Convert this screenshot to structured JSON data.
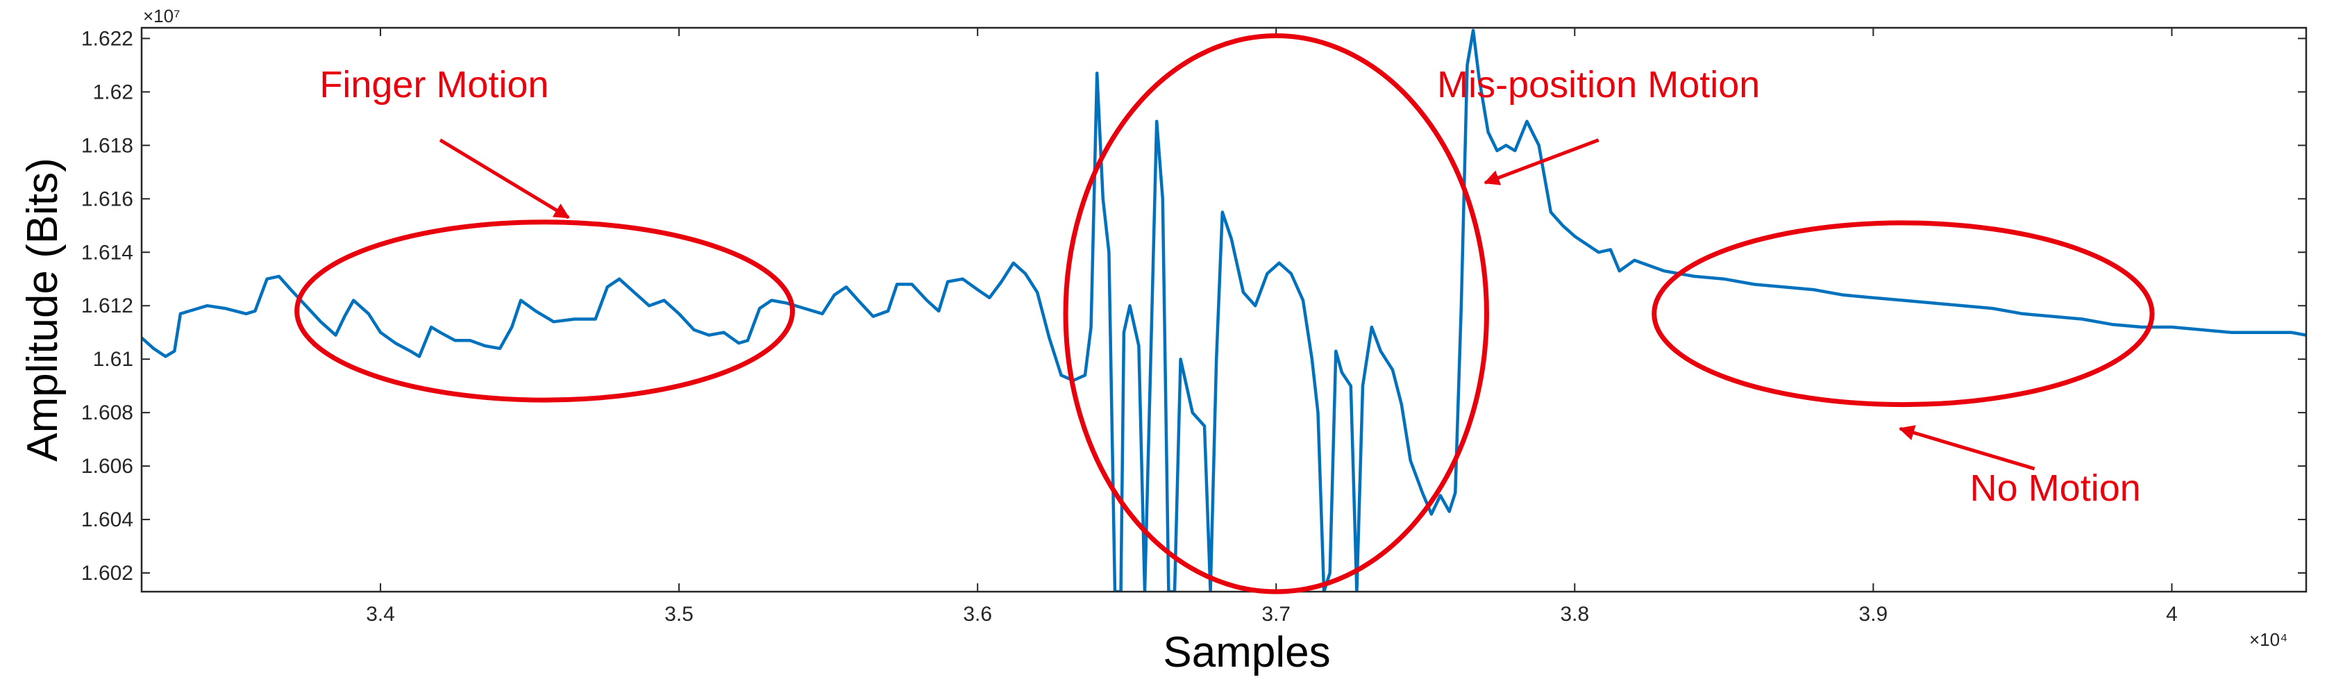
{
  "chart_data": {
    "type": "line",
    "xlabel": "Samples",
    "ylabel": "Amplitude (Bits)",
    "x_exponent": "×10⁴",
    "y_exponent": "×10⁷",
    "xlim": [
      3.32,
      4.045
    ],
    "ylim": [
      1.6013,
      1.6224
    ],
    "x_ticks": [
      3.4,
      3.5,
      3.6,
      3.7,
      3.8,
      3.9,
      4.0
    ],
    "x_tick_labels": [
      "3.4",
      "3.5",
      "3.6",
      "3.7",
      "3.8",
      "3.9",
      "4"
    ],
    "y_ticks": [
      1.602,
      1.604,
      1.606,
      1.608,
      1.61,
      1.612,
      1.614,
      1.616,
      1.618,
      1.62,
      1.622
    ],
    "y_tick_labels": [
      "1.602",
      "1.604",
      "1.606",
      "1.608",
      "1.61",
      "1.612",
      "1.614",
      "1.616",
      "1.618",
      "1.62",
      "1.622"
    ],
    "grid": false,
    "series": [
      {
        "color": "#0072BD",
        "points": [
          [
            3.32,
            1.6108
          ],
          [
            3.324,
            1.6104
          ],
          [
            3.328,
            1.6101
          ],
          [
            3.331,
            1.6103
          ],
          [
            3.333,
            1.6117
          ],
          [
            3.336,
            1.6118
          ],
          [
            3.342,
            1.612
          ],
          [
            3.348,
            1.6119
          ],
          [
            3.355,
            1.6117
          ],
          [
            3.358,
            1.6118
          ],
          [
            3.362,
            1.613
          ],
          [
            3.366,
            1.6131
          ],
          [
            3.37,
            1.6126
          ],
          [
            3.375,
            1.612
          ],
          [
            3.38,
            1.6114
          ],
          [
            3.385,
            1.6109
          ],
          [
            3.388,
            1.6116
          ],
          [
            3.391,
            1.6122
          ],
          [
            3.396,
            1.6117
          ],
          [
            3.4,
            1.611
          ],
          [
            3.405,
            1.6106
          ],
          [
            3.41,
            1.6103
          ],
          [
            3.413,
            1.6101
          ],
          [
            3.417,
            1.6112
          ],
          [
            3.42,
            1.611
          ],
          [
            3.425,
            1.6107
          ],
          [
            3.43,
            1.6107
          ],
          [
            3.435,
            1.6105
          ],
          [
            3.44,
            1.6104
          ],
          [
            3.444,
            1.6112
          ],
          [
            3.447,
            1.6122
          ],
          [
            3.452,
            1.6118
          ],
          [
            3.458,
            1.6114
          ],
          [
            3.465,
            1.6115
          ],
          [
            3.472,
            1.6115
          ],
          [
            3.476,
            1.6127
          ],
          [
            3.48,
            1.613
          ],
          [
            3.485,
            1.6125
          ],
          [
            3.49,
            1.612
          ],
          [
            3.495,
            1.6122
          ],
          [
            3.5,
            1.6117
          ],
          [
            3.505,
            1.6111
          ],
          [
            3.51,
            1.6109
          ],
          [
            3.515,
            1.611
          ],
          [
            3.52,
            1.6106
          ],
          [
            3.523,
            1.6107
          ],
          [
            3.527,
            1.6119
          ],
          [
            3.531,
            1.6122
          ],
          [
            3.536,
            1.6121
          ],
          [
            3.542,
            1.6119
          ],
          [
            3.548,
            1.6117
          ],
          [
            3.552,
            1.6124
          ],
          [
            3.556,
            1.6127
          ],
          [
            3.56,
            1.6122
          ],
          [
            3.565,
            1.6116
          ],
          [
            3.57,
            1.6118
          ],
          [
            3.573,
            1.6128
          ],
          [
            3.578,
            1.6128
          ],
          [
            3.583,
            1.6122
          ],
          [
            3.587,
            1.6118
          ],
          [
            3.59,
            1.6129
          ],
          [
            3.595,
            1.613
          ],
          [
            3.6,
            1.6126
          ],
          [
            3.604,
            1.6123
          ],
          [
            3.608,
            1.6129
          ],
          [
            3.612,
            1.6136
          ],
          [
            3.616,
            1.6132
          ],
          [
            3.62,
            1.6125
          ],
          [
            3.624,
            1.6108
          ],
          [
            3.628,
            1.6094
          ],
          [
            3.632,
            1.6092
          ],
          [
            3.636,
            1.6094
          ],
          [
            3.638,
            1.6112
          ],
          [
            3.64,
            1.6207
          ],
          [
            3.642,
            1.616
          ],
          [
            3.644,
            1.614
          ],
          [
            3.646,
            1.6013
          ],
          [
            3.648,
            1.6013
          ],
          [
            3.649,
            1.611
          ],
          [
            3.651,
            1.612
          ],
          [
            3.654,
            1.6105
          ],
          [
            3.656,
            1.6013
          ],
          [
            3.658,
            1.61
          ],
          [
            3.66,
            1.6189
          ],
          [
            3.662,
            1.616
          ],
          [
            3.664,
            1.6013
          ],
          [
            3.666,
            1.6013
          ],
          [
            3.668,
            1.61
          ],
          [
            3.672,
            1.608
          ],
          [
            3.676,
            1.6075
          ],
          [
            3.678,
            1.6013
          ],
          [
            3.68,
            1.61
          ],
          [
            3.682,
            1.6155
          ],
          [
            3.685,
            1.6145
          ],
          [
            3.689,
            1.6125
          ],
          [
            3.693,
            1.612
          ],
          [
            3.697,
            1.6132
          ],
          [
            3.701,
            1.6136
          ],
          [
            3.705,
            1.6132
          ],
          [
            3.709,
            1.6122
          ],
          [
            3.712,
            1.61
          ],
          [
            3.714,
            1.608
          ],
          [
            3.716,
            1.6013
          ],
          [
            3.718,
            1.602
          ],
          [
            3.72,
            1.6103
          ],
          [
            3.722,
            1.6095
          ],
          [
            3.725,
            1.609
          ],
          [
            3.727,
            1.6013
          ],
          [
            3.729,
            1.609
          ],
          [
            3.732,
            1.6112
          ],
          [
            3.735,
            1.6103
          ],
          [
            3.739,
            1.6096
          ],
          [
            3.742,
            1.6083
          ],
          [
            3.745,
            1.6062
          ],
          [
            3.749,
            1.605
          ],
          [
            3.752,
            1.6042
          ],
          [
            3.755,
            1.6049
          ],
          [
            3.758,
            1.6043
          ],
          [
            3.76,
            1.605
          ],
          [
            3.762,
            1.612
          ],
          [
            3.764,
            1.621
          ],
          [
            3.766,
            1.6223
          ],
          [
            3.768,
            1.6205
          ],
          [
            3.771,
            1.6185
          ],
          [
            3.774,
            1.6178
          ],
          [
            3.777,
            1.618
          ],
          [
            3.78,
            1.6178
          ],
          [
            3.784,
            1.6189
          ],
          [
            3.788,
            1.618
          ],
          [
            3.792,
            1.6155
          ],
          [
            3.796,
            1.615
          ],
          [
            3.8,
            1.6146
          ],
          [
            3.804,
            1.6143
          ],
          [
            3.808,
            1.614
          ],
          [
            3.812,
            1.6141
          ],
          [
            3.815,
            1.6133
          ],
          [
            3.82,
            1.6137
          ],
          [
            3.83,
            1.6133
          ],
          [
            3.84,
            1.6131
          ],
          [
            3.85,
            1.613
          ],
          [
            3.86,
            1.6128
          ],
          [
            3.87,
            1.6127
          ],
          [
            3.88,
            1.6126
          ],
          [
            3.89,
            1.6124
          ],
          [
            3.9,
            1.6123
          ],
          [
            3.91,
            1.6122
          ],
          [
            3.92,
            1.6121
          ],
          [
            3.93,
            1.612
          ],
          [
            3.94,
            1.6119
          ],
          [
            3.95,
            1.6117
          ],
          [
            3.96,
            1.6116
          ],
          [
            3.97,
            1.6115
          ],
          [
            3.98,
            1.6113
          ],
          [
            3.99,
            1.6112
          ],
          [
            4.0,
            1.6112
          ],
          [
            4.01,
            1.6111
          ],
          [
            4.02,
            1.611
          ],
          [
            4.03,
            1.611
          ],
          [
            4.04,
            1.611
          ],
          [
            4.045,
            1.6109
          ]
        ]
      }
    ],
    "annotations": [
      {
        "label": "Finger Motion",
        "color": "#E8000D",
        "ellipse": {
          "cx": 3.455,
          "cy": 1.6118,
          "rx": 0.083,
          "ry": 0.00333
        },
        "text_anchor": {
          "x": 3.418,
          "y": 1.6198
        },
        "arrow": {
          "from": [
            3.42,
            1.6182
          ],
          "to": [
            3.463,
            1.6153
          ]
        }
      },
      {
        "label": "Mis-position Motion",
        "color": "#E8000D",
        "ellipse": {
          "cx": 3.7,
          "cy": 1.6117,
          "rx": 0.0705,
          "ry": 0.0104
        },
        "text_anchor": {
          "x": 3.808,
          "y": 1.6198
        },
        "arrow": {
          "from": [
            3.808,
            1.6182
          ],
          "to": [
            3.77,
            1.6166
          ]
        }
      },
      {
        "label": "No Motion",
        "color": "#E8000D",
        "ellipse": {
          "cx": 3.91,
          "cy": 1.6117,
          "rx": 0.0834,
          "ry": 0.0034
        },
        "text_anchor": {
          "x": 3.961,
          "y": 1.6047
        },
        "arrow": {
          "from": [
            3.954,
            1.6059
          ],
          "to": [
            3.909,
            1.6074
          ]
        }
      }
    ]
  }
}
